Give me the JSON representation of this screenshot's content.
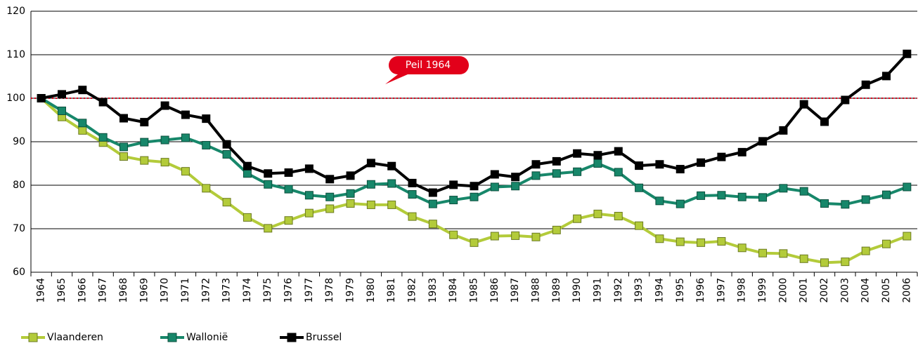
{
  "chart_data": {
    "type": "line",
    "categories": [
      "1964",
      "1965",
      "1966",
      "1967",
      "1968",
      "1969",
      "1970",
      "1971",
      "1972",
      "1973",
      "1974",
      "1975",
      "1976",
      "1977",
      "1978",
      "1979",
      "1980",
      "1981",
      "1982",
      "1983",
      "1984",
      "1985",
      "1986",
      "1987",
      "1988",
      "1989",
      "1990",
      "1991",
      "1992",
      "1993",
      "1994",
      "1995",
      "1996",
      "1997",
      "1998",
      "1999",
      "2000",
      "2001",
      "2002",
      "2003",
      "2004",
      "2005",
      "2006"
    ],
    "series": [
      {
        "name": "Vlaanderen",
        "color": "#b3cb3a",
        "values": [
          100,
          95.7,
          92.6,
          89.8,
          86.6,
          85.7,
          85.3,
          83.2,
          79.3,
          76.1,
          72.6,
          70.1,
          71.9,
          73.6,
          74.6,
          75.8,
          75.5,
          75.5,
          72.8,
          71.1,
          68.6,
          66.8,
          68.3,
          68.4,
          68.1,
          69.7,
          72.3,
          73.4,
          72.9,
          70.7,
          67.7,
          67.0,
          66.8,
          67.1,
          65.6,
          64.4,
          64.3,
          63.1,
          62.2,
          62.4,
          64.9,
          66.5,
          68.3
        ]
      },
      {
        "name": "Wallonië",
        "color": "#17876a",
        "values": [
          100,
          97.1,
          94.3,
          91.0,
          88.8,
          89.9,
          90.4,
          90.9,
          89.2,
          87.1,
          82.7,
          80.2,
          79.1,
          77.7,
          77.3,
          78.1,
          80.2,
          80.4,
          77.9,
          75.7,
          76.6,
          77.3,
          79.6,
          79.8,
          82.2,
          82.7,
          83.1,
          85.0,
          83.0,
          79.4,
          76.4,
          75.7,
          77.6,
          77.7,
          77.3,
          77.2,
          79.3,
          78.6,
          75.8,
          75.6,
          76.7,
          77.8,
          79.6
        ]
      },
      {
        "name": "Brussel",
        "color": "#000000",
        "values": [
          100,
          100.9,
          101.9,
          99.1,
          95.4,
          94.5,
          98.3,
          96.2,
          95.3,
          89.4,
          84.4,
          82.7,
          82.9,
          83.8,
          81.4,
          82.2,
          85.1,
          84.4,
          80.5,
          78.3,
          80.1,
          79.8,
          82.5,
          81.9,
          84.8,
          85.5,
          87.3,
          86.9,
          87.8,
          84.5,
          84.8,
          83.7,
          85.2,
          86.5,
          87.6,
          90.1,
          92.6,
          98.6,
          94.6,
          99.6,
          103.1,
          105.1,
          110.2
        ]
      }
    ],
    "ylim": [
      60,
      120
    ],
    "yticks": [
      60,
      70,
      80,
      90,
      100,
      110,
      120
    ],
    "grid": true,
    "reference_line": {
      "value": 100,
      "label": "Peil 1964",
      "color": "#e2001a"
    },
    "legend": "bottom-left"
  }
}
